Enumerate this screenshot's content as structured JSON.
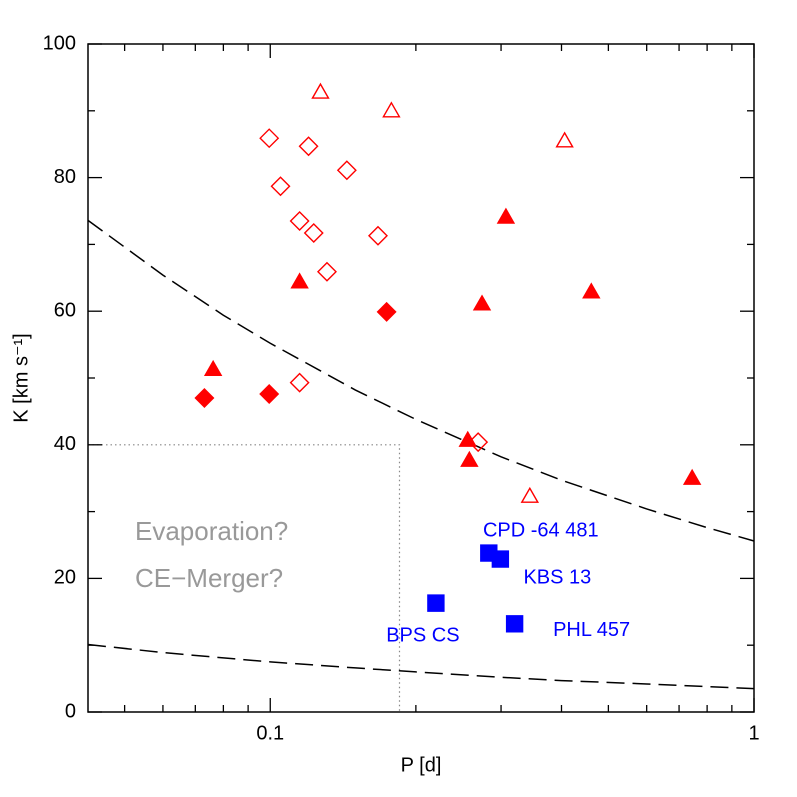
{
  "chart_data": {
    "type": "scatter",
    "xlabel": "P [d]",
    "ylabel": "K [km s⁻¹]",
    "xscale": "log",
    "xlim": [
      0.042,
      1
    ],
    "ylim": [
      0,
      100
    ],
    "xticks": [
      0.1,
      1
    ],
    "xminorticks": [
      0.05,
      0.06,
      0.07,
      0.08,
      0.09,
      0.2,
      0.3,
      0.4,
      0.5,
      0.6,
      0.7,
      0.8,
      0.9
    ],
    "yticks": [
      0,
      20,
      40,
      60,
      80,
      100
    ],
    "yminorticks": [
      10,
      30,
      50,
      70,
      90
    ],
    "series": [
      {
        "marker": "triangle",
        "filled": false,
        "color": "#ff0000",
        "x": [
          0.127,
          0.178,
          0.406,
          0.344
        ],
        "values": [
          92.8,
          90.0,
          85.5,
          32.3
        ]
      },
      {
        "marker": "triangle",
        "filled": true,
        "color": "#ff0000",
        "x": [
          0.307,
          0.115,
          0.274,
          0.461,
          0.0762,
          0.256,
          0.258,
          0.745
        ],
        "values": [
          74.1,
          64.4,
          61.1,
          62.9,
          51.3,
          40.7,
          37.7,
          35.0
        ]
      },
      {
        "marker": "diamond",
        "filled": false,
        "color": "#ff0000",
        "x": [
          0.0995,
          0.12,
          0.105,
          0.144,
          0.115,
          0.123,
          0.167,
          0.131,
          0.115,
          0.269
        ],
        "values": [
          85.9,
          84.7,
          78.7,
          81.1,
          73.5,
          71.7,
          71.3,
          65.9,
          49.3,
          40.4
        ]
      },
      {
        "marker": "diamond",
        "filled": true,
        "color": "#ff0000",
        "x": [
          0.0731,
          0.0995,
          0.174
        ],
        "values": [
          47.0,
          47.6,
          59.9
        ]
      },
      {
        "marker": "square",
        "filled": true,
        "color": "#0000ff",
        "x": [
          0.22,
          0.283,
          0.299,
          0.32
        ],
        "values": [
          16.3,
          23.8,
          22.9,
          13.2
        ],
        "point_labels": [
          "BPS CS",
          "CPD -64 481",
          "KBS 13",
          "PHL 457"
        ]
      }
    ],
    "curves": [
      {
        "color": "#000000",
        "dashed": true,
        "x": [
          0.042,
          0.06,
          0.08,
          0.1,
          0.15,
          0.2,
          0.3,
          0.4,
          0.6,
          0.8,
          1
        ],
        "values": [
          73.6,
          65.4,
          59.4,
          55.2,
          48.2,
          43.8,
          38.2,
          34.7,
          30.4,
          27.6,
          25.6
        ]
      },
      {
        "color": "#000000",
        "dashed": true,
        "x": [
          0.042,
          0.06,
          0.08,
          0.1,
          0.15,
          0.2,
          0.3,
          0.4,
          0.6,
          0.8,
          1
        ],
        "values": [
          10.1,
          8.9,
          8.1,
          7.5,
          6.6,
          6.0,
          5.2,
          4.7,
          4.2,
          3.8,
          3.5
        ]
      }
    ],
    "region": {
      "xmax": 0.185,
      "ymax": 40
    },
    "annotations": [
      "Evaporation?",
      "CE−Merger?"
    ]
  }
}
